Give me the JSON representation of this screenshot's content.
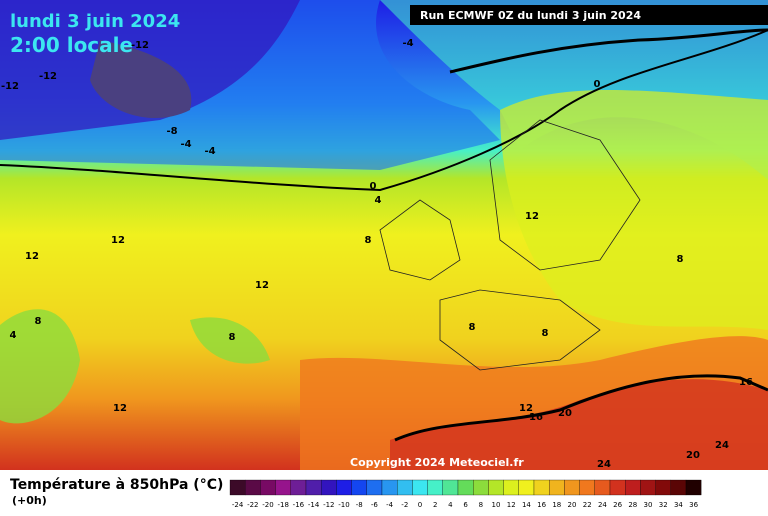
{
  "header": {
    "date": "lundi 3 juin 2024",
    "time": "2:00 locale",
    "run": "Run ECMWF 0Z du lundi 3 juin 2024",
    "copyright": "Copyright 2024 Meteociel.fr"
  },
  "legend": {
    "title": "Température à 850hPa (°C)",
    "step": "(+0h)",
    "labels": [
      -24,
      -22,
      -20,
      -18,
      -16,
      -14,
      -12,
      -10,
      -8,
      -6,
      -4,
      -2,
      0,
      2,
      4,
      6,
      8,
      10,
      12,
      14,
      16,
      18,
      20,
      22,
      24,
      26,
      28,
      30,
      32,
      34,
      36
    ],
    "colors": [
      "#3c0a28",
      "#5a0a46",
      "#780a64",
      "#96148c",
      "#6e1e96",
      "#501eaa",
      "#3214be",
      "#1e1ee6",
      "#1446f0",
      "#1e6ef0",
      "#2896f0",
      "#32bef0",
      "#3ce6f0",
      "#46f0c8",
      "#50e696",
      "#64dc5a",
      "#8cdc3c",
      "#b4e628",
      "#dcf01e",
      "#f0f01e",
      "#f0d21e",
      "#f0b41e",
      "#f0961e",
      "#f0781e",
      "#e65a1e",
      "#d2321e",
      "#be1e1e",
      "#a01414",
      "#820a0a",
      "#5a0505",
      "#200000"
    ]
  },
  "contour_labels": [
    "-12",
    "-12",
    "-12",
    "-8",
    "-4",
    "-4",
    "-4",
    "0",
    "0",
    "4",
    "8",
    "8",
    "8",
    "8",
    "8",
    "8",
    "12",
    "12",
    "12",
    "12",
    "12",
    "12",
    "16",
    "16",
    "20",
    "20",
    "24",
    "24",
    "4"
  ]
}
